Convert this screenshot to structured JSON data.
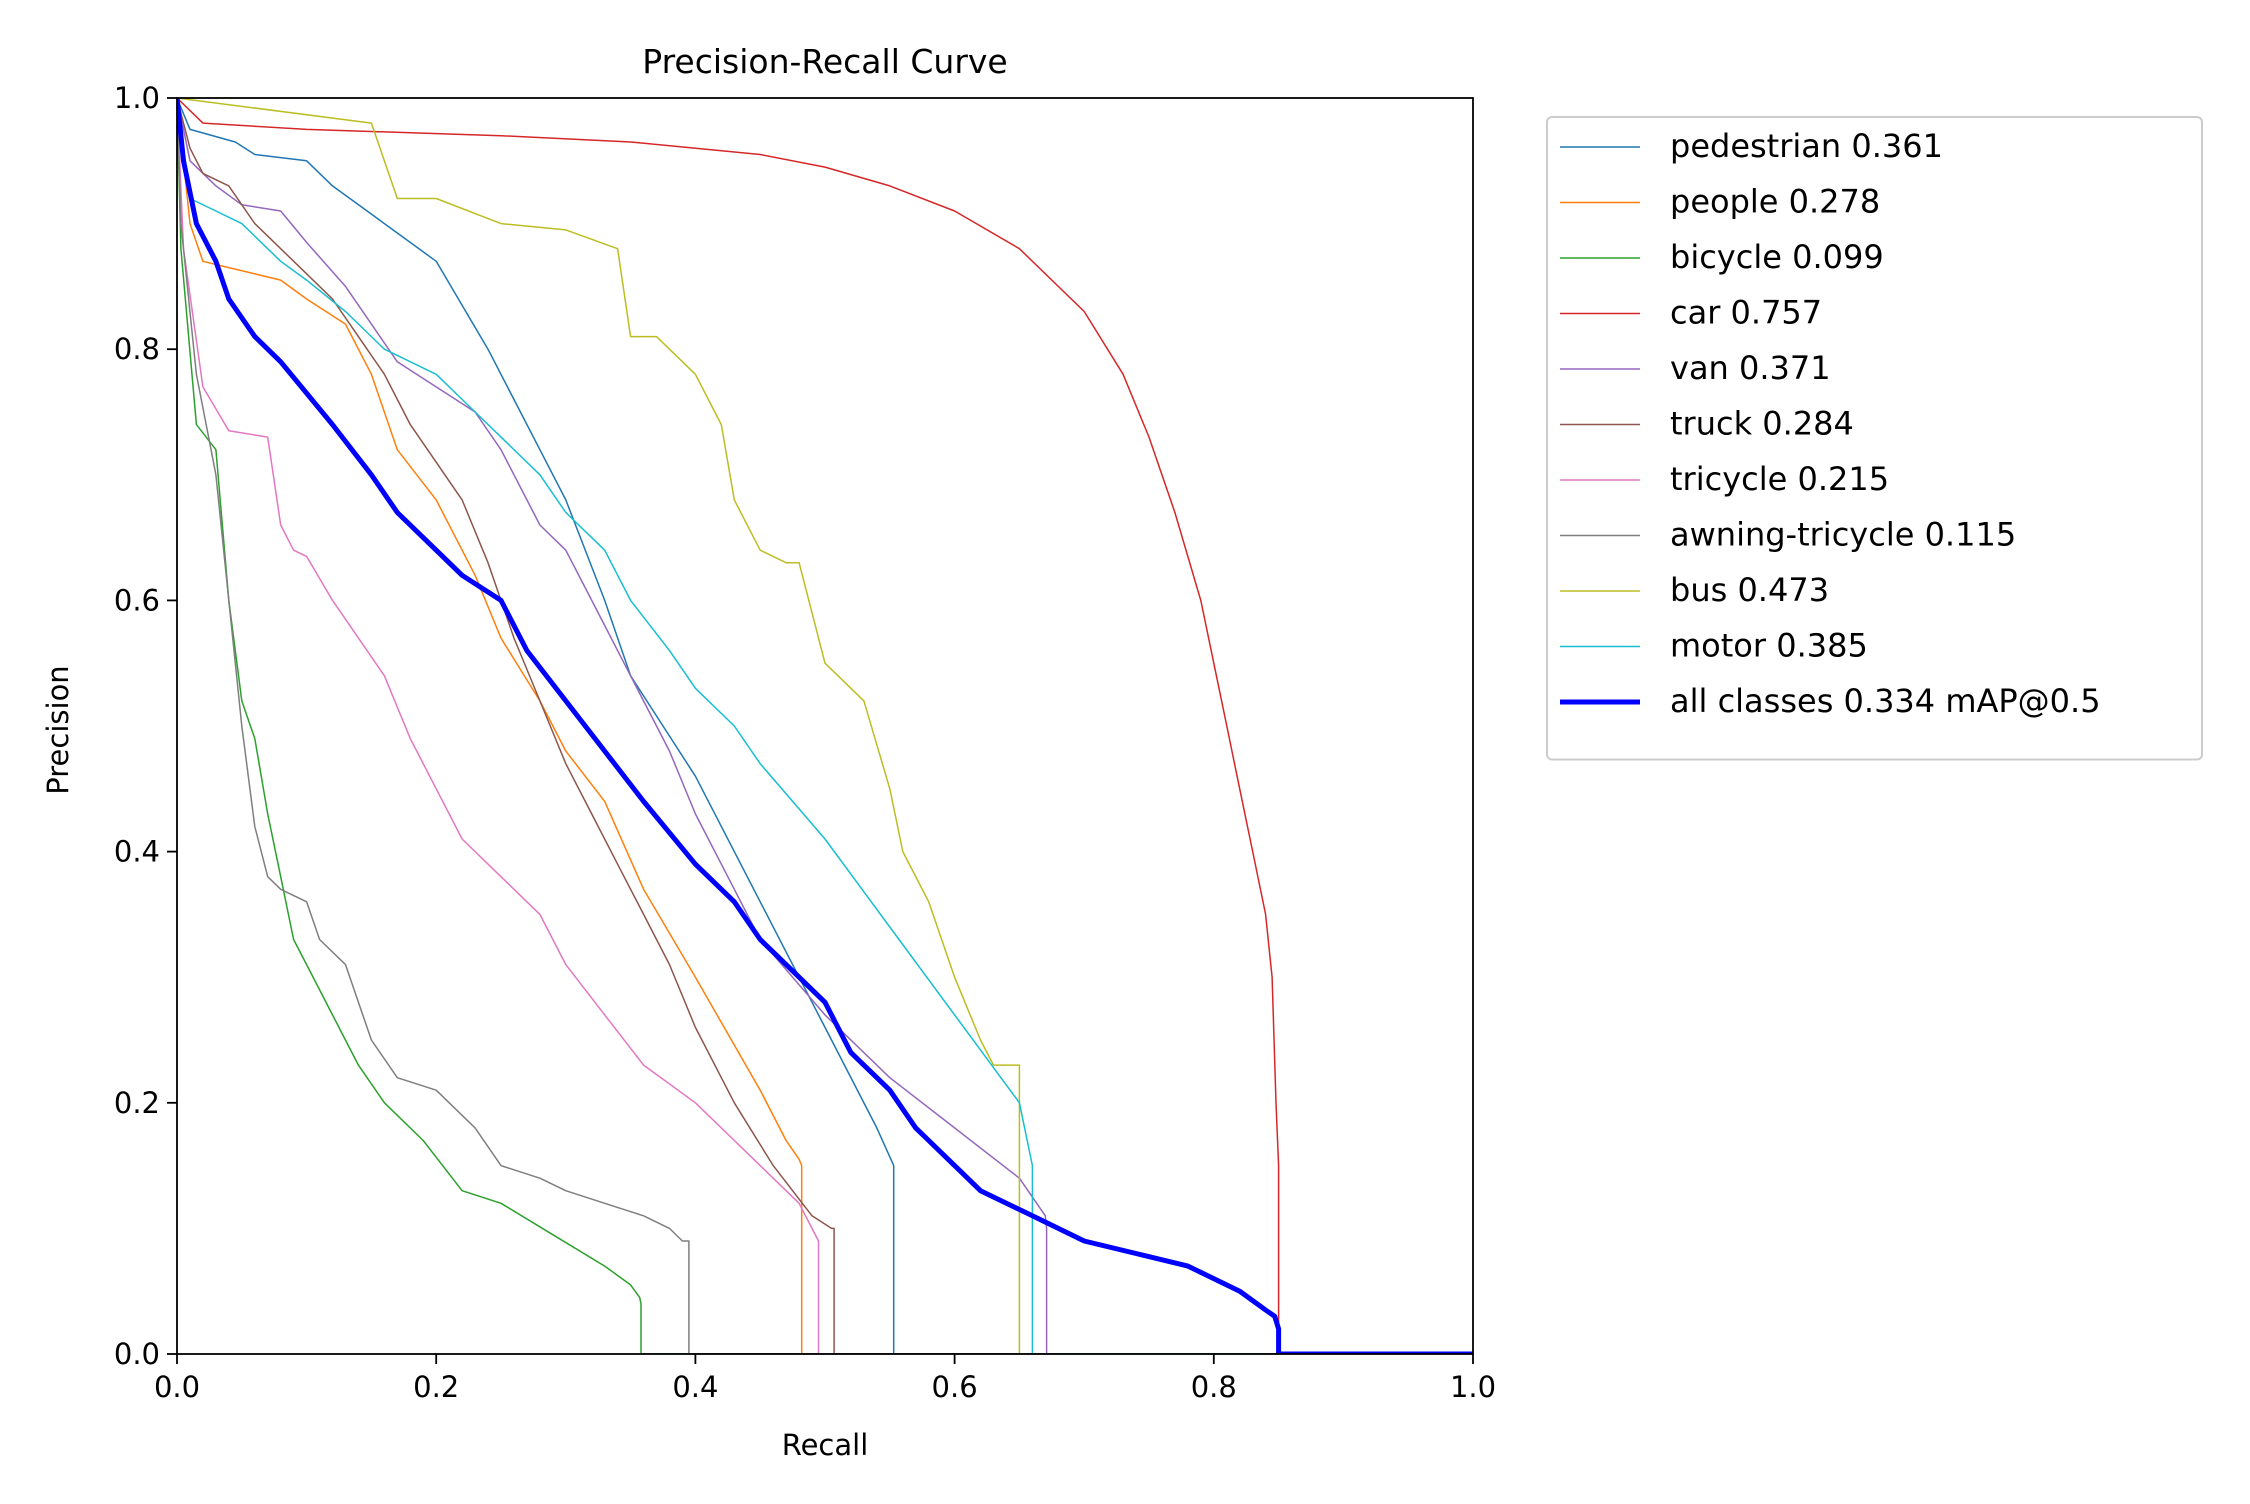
{
  "chart_data": {
    "type": "line",
    "title": "Precision-Recall Curve",
    "xlabel": "Recall",
    "ylabel": "Precision",
    "xlim": [
      0,
      1
    ],
    "ylim": [
      0,
      1
    ],
    "xticks": [
      "0.0",
      "0.2",
      "0.4",
      "0.6",
      "0.8",
      "1.0"
    ],
    "yticks": [
      "0.0",
      "0.2",
      "0.4",
      "0.6",
      "0.8",
      "1.0"
    ],
    "grid": false,
    "legend_position": "outside-right-top",
    "series": [
      {
        "name": "pedestrian 0.361",
        "color": "#1f77b4",
        "width": 1.5,
        "x": [
          0,
          0.01,
          0.045,
          0.06,
          0.1,
          0.12,
          0.16,
          0.2,
          0.24,
          0.28,
          0.3,
          0.33,
          0.35,
          0.4,
          0.45,
          0.5,
          0.54,
          0.553,
          0.553,
          1.0
        ],
        "y": [
          1.0,
          0.975,
          0.965,
          0.955,
          0.95,
          0.93,
          0.9,
          0.87,
          0.8,
          0.72,
          0.68,
          0.6,
          0.54,
          0.46,
          0.36,
          0.26,
          0.18,
          0.15,
          0.0,
          0.0
        ]
      },
      {
        "name": "people 0.278",
        "color": "#ff7f0e",
        "width": 1.5,
        "x": [
          0,
          0.01,
          0.02,
          0.04,
          0.08,
          0.1,
          0.13,
          0.15,
          0.17,
          0.2,
          0.23,
          0.25,
          0.28,
          0.3,
          0.33,
          0.36,
          0.4,
          0.45,
          0.47,
          0.48,
          0.482,
          0.482,
          1.0
        ],
        "y": [
          1.0,
          0.9,
          0.87,
          0.865,
          0.855,
          0.84,
          0.82,
          0.78,
          0.72,
          0.68,
          0.62,
          0.57,
          0.52,
          0.48,
          0.44,
          0.37,
          0.3,
          0.21,
          0.17,
          0.155,
          0.15,
          0.0,
          0.0
        ]
      },
      {
        "name": "bicycle 0.099",
        "color": "#2ca02c",
        "width": 1.5,
        "x": [
          0,
          0.003,
          0.015,
          0.03,
          0.04,
          0.05,
          0.06,
          0.07,
          0.08,
          0.09,
          0.1,
          0.12,
          0.14,
          0.16,
          0.19,
          0.22,
          0.25,
          0.29,
          0.33,
          0.35,
          0.357,
          0.358,
          0.358,
          1.0
        ],
        "y": [
          1.0,
          0.88,
          0.74,
          0.72,
          0.6,
          0.52,
          0.49,
          0.43,
          0.38,
          0.33,
          0.31,
          0.27,
          0.23,
          0.2,
          0.17,
          0.13,
          0.12,
          0.095,
          0.07,
          0.055,
          0.045,
          0.04,
          0.0,
          0.0
        ]
      },
      {
        "name": "car 0.757",
        "color": "#d62728",
        "width": 1.5,
        "x": [
          0,
          0.02,
          0.1,
          0.25,
          0.35,
          0.45,
          0.5,
          0.55,
          0.6,
          0.65,
          0.7,
          0.73,
          0.75,
          0.77,
          0.79,
          0.8,
          0.81,
          0.82,
          0.83,
          0.84,
          0.845,
          0.848,
          0.85,
          0.85,
          1.0
        ],
        "y": [
          1.0,
          0.98,
          0.975,
          0.97,
          0.965,
          0.955,
          0.945,
          0.93,
          0.91,
          0.88,
          0.83,
          0.78,
          0.73,
          0.67,
          0.6,
          0.55,
          0.5,
          0.45,
          0.4,
          0.35,
          0.3,
          0.2,
          0.15,
          0.0,
          0.0
        ]
      },
      {
        "name": "van 0.371",
        "color": "#9467bd",
        "width": 1.5,
        "x": [
          0,
          0.01,
          0.03,
          0.05,
          0.08,
          0.1,
          0.13,
          0.15,
          0.17,
          0.2,
          0.23,
          0.25,
          0.28,
          0.3,
          0.33,
          0.35,
          0.38,
          0.4,
          0.43,
          0.45,
          0.5,
          0.55,
          0.6,
          0.65,
          0.67,
          0.671,
          0.671,
          1.0
        ],
        "y": [
          1.0,
          0.95,
          0.93,
          0.915,
          0.91,
          0.885,
          0.85,
          0.82,
          0.79,
          0.77,
          0.75,
          0.72,
          0.66,
          0.64,
          0.58,
          0.54,
          0.48,
          0.43,
          0.37,
          0.33,
          0.27,
          0.22,
          0.18,
          0.14,
          0.11,
          0.1,
          0.0,
          0.0
        ]
      },
      {
        "name": "truck 0.284",
        "color": "#8c564b",
        "width": 1.5,
        "x": [
          0,
          0.01,
          0.02,
          0.04,
          0.06,
          0.08,
          0.1,
          0.12,
          0.14,
          0.16,
          0.18,
          0.2,
          0.22,
          0.24,
          0.26,
          0.28,
          0.3,
          0.32,
          0.34,
          0.36,
          0.38,
          0.4,
          0.43,
          0.46,
          0.49,
          0.505,
          0.507,
          0.507,
          1.0
        ],
        "y": [
          1.0,
          0.96,
          0.94,
          0.93,
          0.9,
          0.88,
          0.86,
          0.84,
          0.81,
          0.78,
          0.74,
          0.71,
          0.68,
          0.63,
          0.57,
          0.52,
          0.47,
          0.43,
          0.39,
          0.35,
          0.31,
          0.26,
          0.2,
          0.15,
          0.11,
          0.1,
          0.1,
          0.0,
          0.0
        ]
      },
      {
        "name": "tricycle 0.215",
        "color": "#e377c2",
        "width": 1.5,
        "x": [
          0,
          0.005,
          0.02,
          0.04,
          0.07,
          0.08,
          0.09,
          0.1,
          0.12,
          0.13,
          0.16,
          0.18,
          0.2,
          0.22,
          0.25,
          0.28,
          0.3,
          0.33,
          0.36,
          0.4,
          0.43,
          0.46,
          0.48,
          0.49,
          0.495,
          0.495,
          1.0
        ],
        "y": [
          1.0,
          0.88,
          0.77,
          0.735,
          0.73,
          0.66,
          0.64,
          0.635,
          0.6,
          0.585,
          0.54,
          0.49,
          0.45,
          0.41,
          0.38,
          0.35,
          0.31,
          0.27,
          0.23,
          0.2,
          0.17,
          0.14,
          0.12,
          0.1,
          0.09,
          0.0,
          0.0
        ]
      },
      {
        "name": "awning-tricycle 0.115",
        "color": "#7f7f7f",
        "width": 1.5,
        "x": [
          0,
          0.003,
          0.015,
          0.03,
          0.04,
          0.05,
          0.06,
          0.07,
          0.08,
          0.1,
          0.11,
          0.13,
          0.15,
          0.17,
          0.2,
          0.23,
          0.25,
          0.28,
          0.3,
          0.33,
          0.36,
          0.38,
          0.39,
          0.395,
          0.395,
          1.0
        ],
        "y": [
          1.0,
          0.9,
          0.78,
          0.7,
          0.6,
          0.5,
          0.42,
          0.38,
          0.37,
          0.36,
          0.33,
          0.31,
          0.25,
          0.22,
          0.21,
          0.18,
          0.15,
          0.14,
          0.13,
          0.12,
          0.11,
          0.1,
          0.09,
          0.09,
          0.0,
          0.0
        ]
      },
      {
        "name": "bus 0.473",
        "color": "#bcbd22",
        "width": 1.5,
        "x": [
          0,
          0.15,
          0.17,
          0.2,
          0.25,
          0.3,
          0.34,
          0.35,
          0.37,
          0.4,
          0.42,
          0.43,
          0.45,
          0.47,
          0.48,
          0.5,
          0.53,
          0.55,
          0.56,
          0.58,
          0.6,
          0.62,
          0.63,
          0.65,
          0.65,
          1.0
        ],
        "y": [
          1.0,
          0.98,
          0.92,
          0.92,
          0.9,
          0.895,
          0.88,
          0.81,
          0.81,
          0.78,
          0.74,
          0.68,
          0.64,
          0.63,
          0.63,
          0.55,
          0.52,
          0.45,
          0.4,
          0.36,
          0.3,
          0.25,
          0.23,
          0.23,
          0.0,
          0.0
        ]
      },
      {
        "name": "motor 0.385",
        "color": "#17becf",
        "width": 1.5,
        "x": [
          0,
          0.01,
          0.03,
          0.05,
          0.08,
          0.1,
          0.13,
          0.16,
          0.2,
          0.23,
          0.25,
          0.28,
          0.3,
          0.33,
          0.35,
          0.38,
          0.4,
          0.43,
          0.45,
          0.5,
          0.55,
          0.6,
          0.65,
          0.66,
          0.66,
          1.0
        ],
        "y": [
          1.0,
          0.92,
          0.91,
          0.9,
          0.87,
          0.855,
          0.83,
          0.8,
          0.78,
          0.75,
          0.73,
          0.7,
          0.67,
          0.64,
          0.6,
          0.56,
          0.53,
          0.5,
          0.47,
          0.41,
          0.34,
          0.27,
          0.2,
          0.15,
          0.0,
          0.0
        ]
      },
      {
        "name": "all classes 0.334 mAP@0.5",
        "color": "#0000ff",
        "width": 5,
        "x": [
          0,
          0.005,
          0.015,
          0.03,
          0.04,
          0.06,
          0.08,
          0.1,
          0.12,
          0.15,
          0.17,
          0.2,
          0.22,
          0.25,
          0.27,
          0.3,
          0.33,
          0.36,
          0.4,
          0.43,
          0.45,
          0.48,
          0.5,
          0.52,
          0.55,
          0.57,
          0.58,
          0.6,
          0.62,
          0.66,
          0.7,
          0.74,
          0.78,
          0.82,
          0.84,
          0.847,
          0.85,
          0.85,
          1.0
        ],
        "y": [
          1.0,
          0.95,
          0.9,
          0.87,
          0.84,
          0.81,
          0.79,
          0.765,
          0.74,
          0.7,
          0.67,
          0.64,
          0.62,
          0.6,
          0.56,
          0.52,
          0.48,
          0.44,
          0.39,
          0.36,
          0.33,
          0.3,
          0.28,
          0.24,
          0.21,
          0.18,
          0.17,
          0.15,
          0.13,
          0.11,
          0.09,
          0.08,
          0.07,
          0.05,
          0.035,
          0.03,
          0.02,
          0.0,
          0.0
        ]
      }
    ]
  }
}
